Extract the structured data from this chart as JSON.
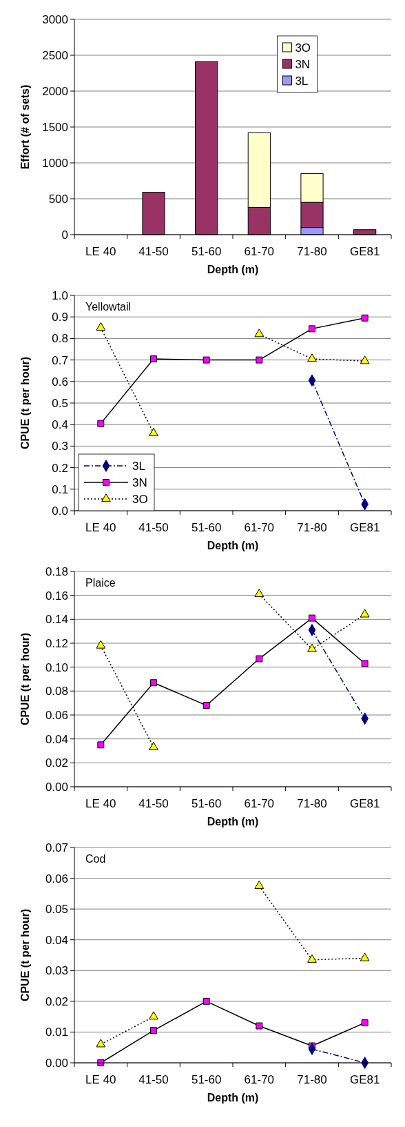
{
  "chart_data": [
    {
      "type": "bar",
      "stacked": true,
      "categories": [
        "LE 40",
        "41-50",
        "51-60",
        "61-70",
        "71-80",
        "GE81"
      ],
      "xlabel": "Depth (m)",
      "ylabel": "Effort (# of sets)",
      "ylim": [
        0,
        3000
      ],
      "yticks": [
        0,
        500,
        1000,
        1500,
        2000,
        2500,
        3000
      ],
      "grid": "y",
      "legend": "top right",
      "series": [
        {
          "name": "3L",
          "color": "#9999ff",
          "values": [
            null,
            null,
            null,
            null,
            100,
            null
          ]
        },
        {
          "name": "3N",
          "color": "#993366",
          "values": [
            null,
            590,
            2410,
            380,
            350,
            70
          ]
        },
        {
          "name": "3O",
          "color": "#ffffcc",
          "values": [
            null,
            null,
            null,
            1040,
            400,
            null
          ]
        }
      ]
    },
    {
      "type": "line",
      "title": "Yellowtail",
      "categories": [
        "LE 40",
        "41-50",
        "51-60",
        "61-70",
        "71-80",
        "GE81"
      ],
      "xlabel": "Depth (m)",
      "ylabel": "CPUE  (t per hour)",
      "ylim": [
        0,
        1
      ],
      "yticks": [
        {
          "value": 0,
          "label": "0.0"
        },
        0.1,
        0.2,
        0.3,
        0.4,
        0.5,
        0.6,
        0.7,
        0.8,
        0.9,
        {
          "value": 1,
          "label": "1.0"
        }
      ],
      "grid": "y",
      "legend": "bottom left",
      "series": [
        {
          "name": "3L",
          "color": "#000080",
          "marker": "diamond",
          "line_style": "dashed",
          "values": [
            null,
            null,
            null,
            null,
            0.605,
            0.03
          ]
        },
        {
          "name": "3N",
          "color": "#ff00ff",
          "marker": "square",
          "line_style": "solid",
          "values": [
            0.405,
            0.705,
            0.7,
            0.7,
            0.845,
            0.895
          ]
        },
        {
          "name": "3O",
          "color": "#ffff00",
          "marker": "triangle",
          "line_style": "dotted",
          "values": [
            0.85,
            0.36,
            null,
            0.82,
            0.705,
            0.695
          ]
        }
      ]
    },
    {
      "type": "line",
      "title": "Plaice",
      "categories": [
        "LE 40",
        "41-50",
        "51-60",
        "61-70",
        "71-80",
        "GE81"
      ],
      "xlabel": "Depth (m)",
      "ylabel": "CPUE (t per hour)",
      "ylim": [
        0,
        0.18
      ],
      "yticks": [
        {
          "value": 0,
          "label": "0.00"
        },
        0.02,
        0.04,
        0.06,
        0.08,
        {
          "value": 0.1,
          "label": "0.10"
        },
        0.12,
        0.14,
        0.16,
        0.18
      ],
      "grid": "y",
      "series": [
        {
          "color": "#000080",
          "marker": "diamond",
          "line_style": "dashed",
          "values": [
            null,
            null,
            null,
            null,
            0.131,
            0.057
          ]
        },
        {
          "color": "#ff00ff",
          "marker": "square",
          "line_style": "solid",
          "values": [
            0.035,
            0.087,
            0.068,
            0.107,
            0.141,
            0.103
          ]
        },
        {
          "color": "#ffff00",
          "marker": "triangle",
          "line_style": "dotted",
          "values": [
            0.118,
            0.033,
            null,
            0.161,
            0.115,
            0.144
          ]
        }
      ]
    },
    {
      "type": "line",
      "title": "Cod",
      "categories": [
        "LE 40",
        "41-50",
        "51-60",
        "61-70",
        "71-80",
        "GE81"
      ],
      "xlabel": "Depth (m)",
      "ylabel": "CPUE (t per hour)",
      "ylim": [
        0,
        0.07
      ],
      "yticks": [
        {
          "value": 0,
          "label": "0.00"
        },
        0.01,
        0.02,
        0.03,
        0.04,
        0.05,
        0.06,
        0.07
      ],
      "grid": "y",
      "series": [
        {
          "color": "#000080",
          "marker": "diamond",
          "line_style": "dashed",
          "values": [
            null,
            null,
            null,
            null,
            0.0045,
            0
          ]
        },
        {
          "color": "#ff00ff",
          "marker": "square",
          "line_style": "solid",
          "values": [
            0,
            0.0105,
            0.02,
            0.012,
            0.0055,
            0.013
          ]
        },
        {
          "color": "#ffff00",
          "marker": "triangle",
          "line_style": "dotted",
          "values": [
            0.006,
            0.015,
            null,
            0.0575,
            0.0335,
            0.034
          ]
        }
      ]
    }
  ]
}
